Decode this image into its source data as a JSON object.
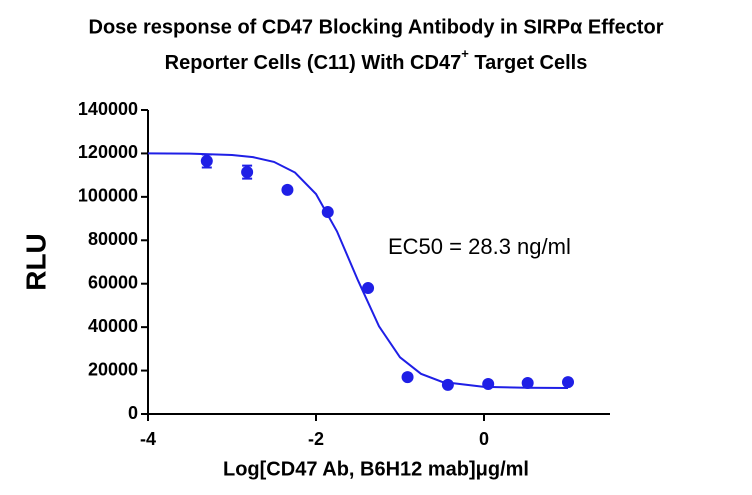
{
  "chart_data": {
    "type": "dose-response",
    "title": "Dose response of CD47 Blocking Antibody in SIRPα Effector",
    "title_line2": [
      "Reporter Cells (C11) With CD47",
      "+",
      " Target Cells"
    ],
    "x_label": "Log[CD47 Ab, B6H12 mab]μg/ml",
    "y_label": "RLU",
    "annotation": "EC50 = 28.3 ng/ml",
    "color": "#1f1fe6",
    "xlim": [
      -4,
      1.5
    ],
    "xticks": [
      -4,
      -2,
      0
    ],
    "ylim": [
      0,
      140000
    ],
    "yticks": [
      0,
      20000,
      40000,
      60000,
      80000,
      100000,
      120000,
      140000
    ],
    "series": [
      {
        "x": [
          -3.3,
          -2.82,
          -2.34,
          -1.86,
          -1.38,
          -0.91,
          -0.43,
          0.05,
          0.52,
          1.0
        ],
        "values": [
          116500,
          111400,
          103200,
          93000,
          58000,
          17000,
          13400,
          13800,
          14300,
          14700
        ],
        "errors": [
          3000,
          3000,
          1000,
          1000,
          1000,
          1000,
          500,
          500,
          500,
          500
        ]
      }
    ],
    "curve": {
      "x": [
        -4,
        -3.5,
        -3,
        -2.75,
        -2.5,
        -2.25,
        -2,
        -1.75,
        -1.5,
        -1.25,
        -1,
        -0.75,
        -0.5,
        0,
        0.5,
        1
      ],
      "values": [
        120000,
        119900,
        119300,
        118300,
        116100,
        111200,
        101300,
        84100,
        61500,
        40400,
        26100,
        18500,
        14800,
        12500,
        12100,
        12000
      ]
    }
  }
}
